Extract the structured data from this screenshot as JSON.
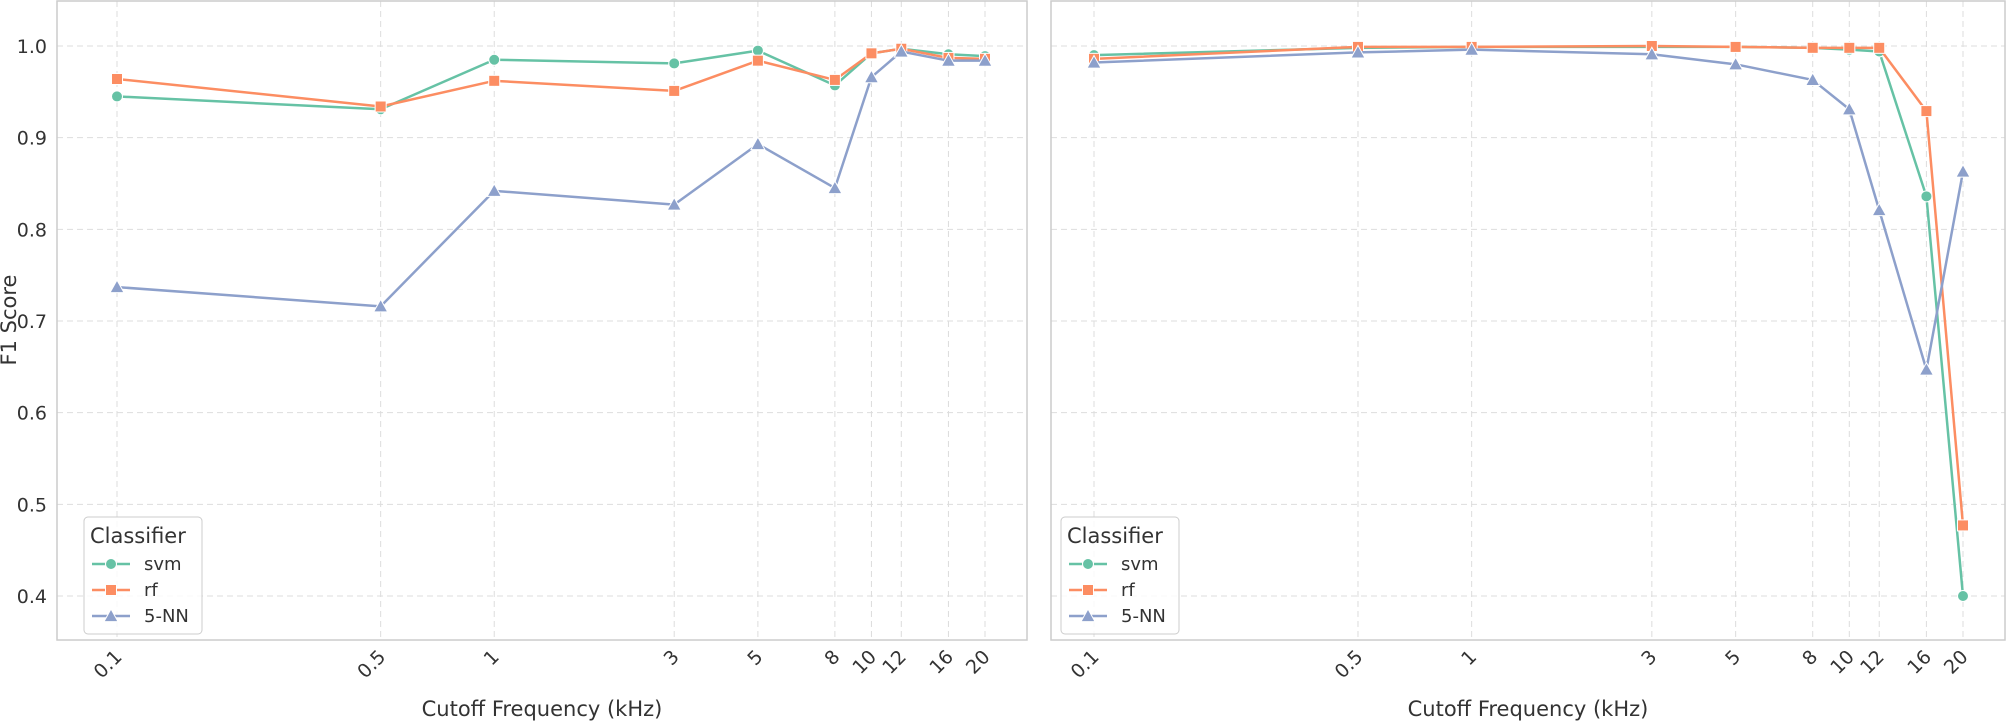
{
  "chart_data": [
    {
      "type": "line",
      "x_scale": "log",
      "xlabel": "Cutoff Frequency (kHz)",
      "ylabel": "F1 Score",
      "x_ticks": [
        0.1,
        0.5,
        1,
        3,
        5,
        8,
        10,
        12,
        16,
        20
      ],
      "x_tick_labels": [
        "0.1",
        "0.5",
        "1",
        "3",
        "5",
        "8",
        "10",
        "12",
        "16",
        "20"
      ],
      "y_ticks": [
        0.4,
        0.5,
        0.6,
        0.7,
        0.8,
        0.9,
        1.0
      ],
      "y_tick_labels": [
        "0.4",
        "0.5",
        "0.6",
        "0.7",
        "0.8",
        "0.9",
        "1.0"
      ],
      "ylim": [
        0.35,
        1.05
      ],
      "grid": true,
      "legend": {
        "title": "Classifier",
        "position": "lower-left"
      },
      "series": [
        {
          "name": "svm",
          "color": "#66c2a5",
          "marker": "circle",
          "x": [
            0.1,
            0.5,
            1,
            3,
            5,
            8,
            10,
            12,
            16,
            20
          ],
          "y": [
            0.945,
            0.931,
            0.985,
            0.981,
            0.995,
            0.957,
            0.992,
            0.997,
            0.991,
            0.989
          ]
        },
        {
          "name": "rf",
          "color": "#fc8d62",
          "marker": "square",
          "x": [
            0.1,
            0.5,
            1,
            3,
            5,
            8,
            10,
            12,
            16,
            20
          ],
          "y": [
            0.964,
            0.934,
            0.962,
            0.951,
            0.984,
            0.963,
            0.992,
            0.997,
            0.987,
            0.986
          ]
        },
        {
          "name": "5-NN",
          "color": "#8da0cb",
          "marker": "triangle",
          "x": [
            0.1,
            0.5,
            1,
            3,
            5,
            8,
            10,
            12,
            16,
            20
          ],
          "y": [
            0.737,
            0.716,
            0.842,
            0.827,
            0.893,
            0.845,
            0.966,
            0.994,
            0.984,
            0.984
          ]
        }
      ]
    },
    {
      "type": "line",
      "x_scale": "log",
      "xlabel": "Cutoff Frequency (kHz)",
      "ylabel": "",
      "x_ticks": [
        0.1,
        0.5,
        1,
        3,
        5,
        8,
        10,
        12,
        16,
        20
      ],
      "x_tick_labels": [
        "0.1",
        "0.5",
        "1",
        "3",
        "5",
        "8",
        "10",
        "12",
        "16",
        "20"
      ],
      "y_ticks": [
        0.4,
        0.5,
        0.6,
        0.7,
        0.8,
        0.9,
        1.0
      ],
      "ylim": [
        0.35,
        1.05
      ],
      "grid": true,
      "legend": {
        "title": "Classifier",
        "position": "lower-left"
      },
      "series": [
        {
          "name": "svm",
          "color": "#66c2a5",
          "marker": "circle",
          "x": [
            0.1,
            0.5,
            1,
            3,
            5,
            8,
            10,
            12,
            16,
            20
          ],
          "y": [
            0.99,
            0.998,
            0.999,
            0.999,
            0.999,
            0.998,
            0.996,
            0.994,
            0.836,
            0.4
          ]
        },
        {
          "name": "rf",
          "color": "#fc8d62",
          "marker": "square",
          "x": [
            0.1,
            0.5,
            1,
            3,
            5,
            8,
            10,
            12,
            16,
            20
          ],
          "y": [
            0.986,
            0.999,
            0.999,
            1.0,
            0.999,
            0.998,
            0.998,
            0.998,
            0.929,
            0.477
          ]
        },
        {
          "name": "5-NN",
          "color": "#8da0cb",
          "marker": "triangle",
          "x": [
            0.1,
            0.5,
            1,
            3,
            5,
            8,
            10,
            12,
            16,
            20
          ],
          "y": [
            0.982,
            0.993,
            0.996,
            0.991,
            0.98,
            0.963,
            0.931,
            0.821,
            0.647,
            0.863
          ]
        }
      ]
    }
  ]
}
